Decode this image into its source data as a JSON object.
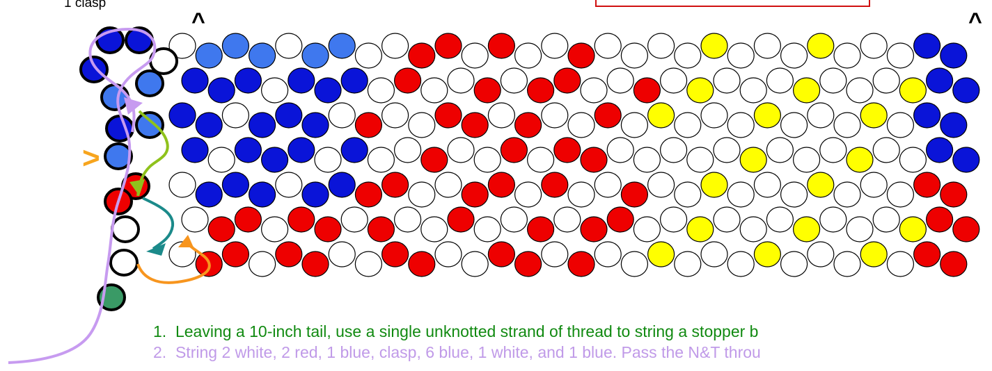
{
  "labels": {
    "clasp": "1 clasp",
    "caret_top_left": "^",
    "caret_top_right": "^",
    "caret_side": ">"
  },
  "instructions": [
    {
      "num": "1.",
      "text": "Leaving a 10-inch tail, use a single unknotted strand of thread to string a stopper b"
    },
    {
      "num": "2.",
      "text": "String 2 white, 2 red, 1 blue, clasp, 6 blue, 1 white, and 1 blue.  Pass the N&T throu"
    }
  ],
  "colors": {
    "blue": "#0a14d8",
    "light_blue": "#3f78ee",
    "red": "#ee0000",
    "white": "#ffffff",
    "yellow": "#ffff00",
    "clasp_green": "#3a9a66",
    "path_lavender": "#c79bf0",
    "path_green": "#8fc21c",
    "path_teal": "#1b8a8a",
    "path_orange": "#f7951e",
    "caret_orange": "#f7a51e",
    "box_red": "#d01010",
    "step1_text": "#118a11",
    "step2_text": "#c09ae8"
  }
}
